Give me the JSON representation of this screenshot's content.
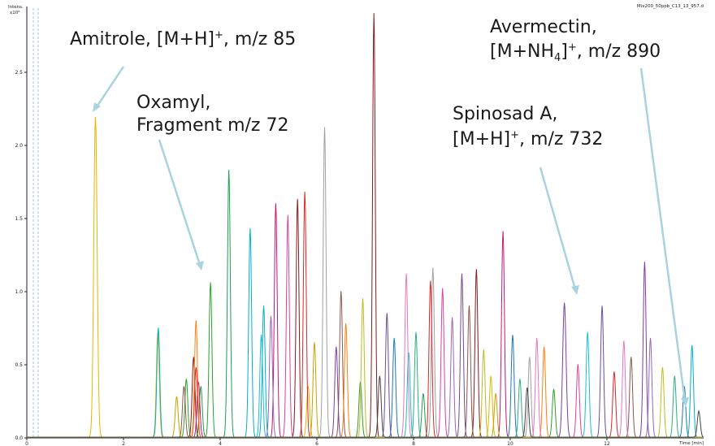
{
  "file_label": "Mix200_50ppb_C13_13_957.d",
  "y_axis": {
    "unit_line1": "Intens.",
    "unit_line2": "x10⁶"
  },
  "x_axis": {
    "unit_label": "Time [min]"
  },
  "annotations": {
    "amitrole": {
      "text": "Amitrole, [M+H]",
      "sup": "+",
      "tail": ", m/z 85"
    },
    "oxamyl": {
      "line1": "Oxamyl,",
      "line2": "Fragment m/z 72"
    },
    "spinosad": {
      "line1": "Spinosad A,",
      "line2_pre": "[M+H]",
      "sup": "+",
      "line2_post": ", m/z 732"
    },
    "avermectin": {
      "line1": "Avermectin,",
      "line2_pre": "[M+NH",
      "sub": "4",
      "line2_mid": "]",
      "sup": "+",
      "line2_post": ", m/z 890"
    }
  },
  "chart_data": {
    "type": "line",
    "title": "",
    "xlabel": "Time [min]",
    "ylabel": "Intens. x10⁶",
    "xlim": [
      0,
      14
    ],
    "ylim": [
      0,
      2.95
    ],
    "x_ticks": [
      0,
      2,
      4,
      6,
      8,
      10,
      12
    ],
    "x_tick_labels": [
      "0",
      "2",
      "4",
      "6",
      "8",
      "10",
      "12"
    ],
    "y_ticks": [
      0.0,
      0.5,
      1.0,
      1.5,
      2.0,
      2.5
    ],
    "y_tick_labels": [
      "0.0",
      "0.5",
      "1.0",
      "1.5",
      "2.0",
      "2.5"
    ],
    "grid": false,
    "series": [
      {
        "color": "#e8b400",
        "peaks": [
          [
            1.42,
            2.19,
            0.035
          ],
          [
            2.71,
            0.72,
            0.03
          ],
          [
            5.82,
            0.35,
            0.03
          ],
          [
            9.6,
            0.42,
            0.03
          ]
        ]
      },
      {
        "color": "#2ca02c",
        "peaks": [
          [
            3.8,
            1.06,
            0.03
          ],
          [
            3.3,
            0.4,
            0.03
          ],
          [
            6.9,
            0.38,
            0.03
          ],
          [
            10.9,
            0.33,
            0.03
          ]
        ]
      },
      {
        "color": "#1f9d55",
        "peaks": [
          [
            4.18,
            1.83,
            0.03
          ],
          [
            3.6,
            0.35,
            0.03
          ],
          [
            8.2,
            0.3,
            0.03
          ]
        ]
      },
      {
        "color": "#8b1a1a",
        "peaks": [
          [
            7.18,
            2.9,
            0.028
          ],
          [
            5.6,
            1.63,
            0.03
          ],
          [
            9.3,
            1.15,
            0.03
          ],
          [
            3.45,
            0.55,
            0.03
          ]
        ]
      },
      {
        "color": "#a0a0a0",
        "peaks": [
          [
            6.16,
            2.12,
            0.03
          ],
          [
            8.4,
            1.16,
            0.03
          ],
          [
            10.4,
            0.55,
            0.03
          ]
        ]
      },
      {
        "color": "#c0187a",
        "peaks": [
          [
            5.15,
            1.6,
            0.03
          ],
          [
            9.85,
            1.41,
            0.03
          ],
          [
            3.55,
            0.38,
            0.03
          ]
        ]
      },
      {
        "color": "#e0409a",
        "peaks": [
          [
            5.4,
            1.52,
            0.03
          ],
          [
            8.6,
            1.02,
            0.03
          ],
          [
            11.4,
            0.5,
            0.03
          ]
        ]
      },
      {
        "color": "#d62728",
        "peaks": [
          [
            5.75,
            1.68,
            0.03
          ],
          [
            8.35,
            1.07,
            0.03
          ],
          [
            12.15,
            0.45,
            0.03
          ],
          [
            3.5,
            0.48,
            0.03
          ]
        ]
      },
      {
        "color": "#7b3fa0",
        "peaks": [
          [
            11.12,
            0.92,
            0.035
          ],
          [
            12.78,
            1.2,
            0.03
          ],
          [
            6.4,
            0.62,
            0.03
          ]
        ]
      },
      {
        "color": "#00b0c8",
        "peaks": [
          [
            4.62,
            1.43,
            0.03
          ],
          [
            13.76,
            0.63,
            0.03
          ],
          [
            4.9,
            0.9,
            0.03
          ],
          [
            2.72,
            0.75,
            0.03
          ]
        ]
      },
      {
        "color": "#1f77b4",
        "peaks": [
          [
            13.6,
            0.35,
            0.03
          ],
          [
            7.6,
            0.68,
            0.03
          ],
          [
            10.05,
            0.7,
            0.03
          ]
        ]
      },
      {
        "color": "#8c564b",
        "peaks": [
          [
            6.5,
            1.0,
            0.03
          ],
          [
            9.15,
            0.9,
            0.03
          ],
          [
            12.5,
            0.55,
            0.03
          ],
          [
            3.25,
            0.35,
            0.03
          ]
        ]
      },
      {
        "color": "#ff7f0e",
        "peaks": [
          [
            3.5,
            0.8,
            0.03
          ],
          [
            6.6,
            0.78,
            0.03
          ],
          [
            10.7,
            0.62,
            0.03
          ]
        ]
      },
      {
        "color": "#17becf",
        "peaks": [
          [
            4.85,
            0.7,
            0.03
          ],
          [
            7.9,
            0.58,
            0.03
          ],
          [
            11.6,
            0.72,
            0.03
          ]
        ]
      },
      {
        "color": "#9467bd",
        "peaks": [
          [
            5.05,
            0.83,
            0.03
          ],
          [
            8.8,
            0.82,
            0.03
          ],
          [
            12.9,
            0.68,
            0.03
          ]
        ]
      },
      {
        "color": "#bcbd22",
        "peaks": [
          [
            6.95,
            0.95,
            0.03
          ],
          [
            9.45,
            0.6,
            0.03
          ],
          [
            13.15,
            0.48,
            0.03
          ]
        ]
      },
      {
        "color": "#e377c2",
        "peaks": [
          [
            7.85,
            1.12,
            0.03
          ],
          [
            10.55,
            0.68,
            0.03
          ],
          [
            12.35,
            0.66,
            0.03
          ]
        ]
      },
      {
        "color": "#6b4c9a",
        "peaks": [
          [
            7.45,
            0.85,
            0.03
          ],
          [
            9.0,
            1.12,
            0.03
          ],
          [
            11.9,
            0.9,
            0.03
          ]
        ]
      },
      {
        "color": "#2ab07f",
        "peaks": [
          [
            8.05,
            0.72,
            0.03
          ],
          [
            10.2,
            0.4,
            0.03
          ],
          [
            13.4,
            0.42,
            0.03
          ]
        ]
      },
      {
        "color": "#c9a000",
        "peaks": [
          [
            3.1,
            0.28,
            0.03
          ],
          [
            5.95,
            0.65,
            0.03
          ],
          [
            9.7,
            0.3,
            0.03
          ]
        ]
      },
      {
        "color": "#444444",
        "peaks": [
          [
            13.9,
            0.18,
            0.03
          ],
          [
            7.3,
            0.42,
            0.03
          ],
          [
            10.35,
            0.34,
            0.03
          ]
        ]
      }
    ],
    "annotations": [
      {
        "text": "Amitrole, [M+H]+, m/z 85",
        "target": [
          1.42,
          2.2
        ]
      },
      {
        "text": "Oxamyl, Fragment m/z 72",
        "target": [
          3.8,
          1.1
        ]
      },
      {
        "text": "Spinosad A, [M+H]+, m/z 732",
        "target": [
          11.12,
          0.97
        ]
      },
      {
        "text": "Avermectin, [M+NH4]+, m/z 890",
        "target": [
          13.76,
          0.2
        ]
      }
    ]
  }
}
